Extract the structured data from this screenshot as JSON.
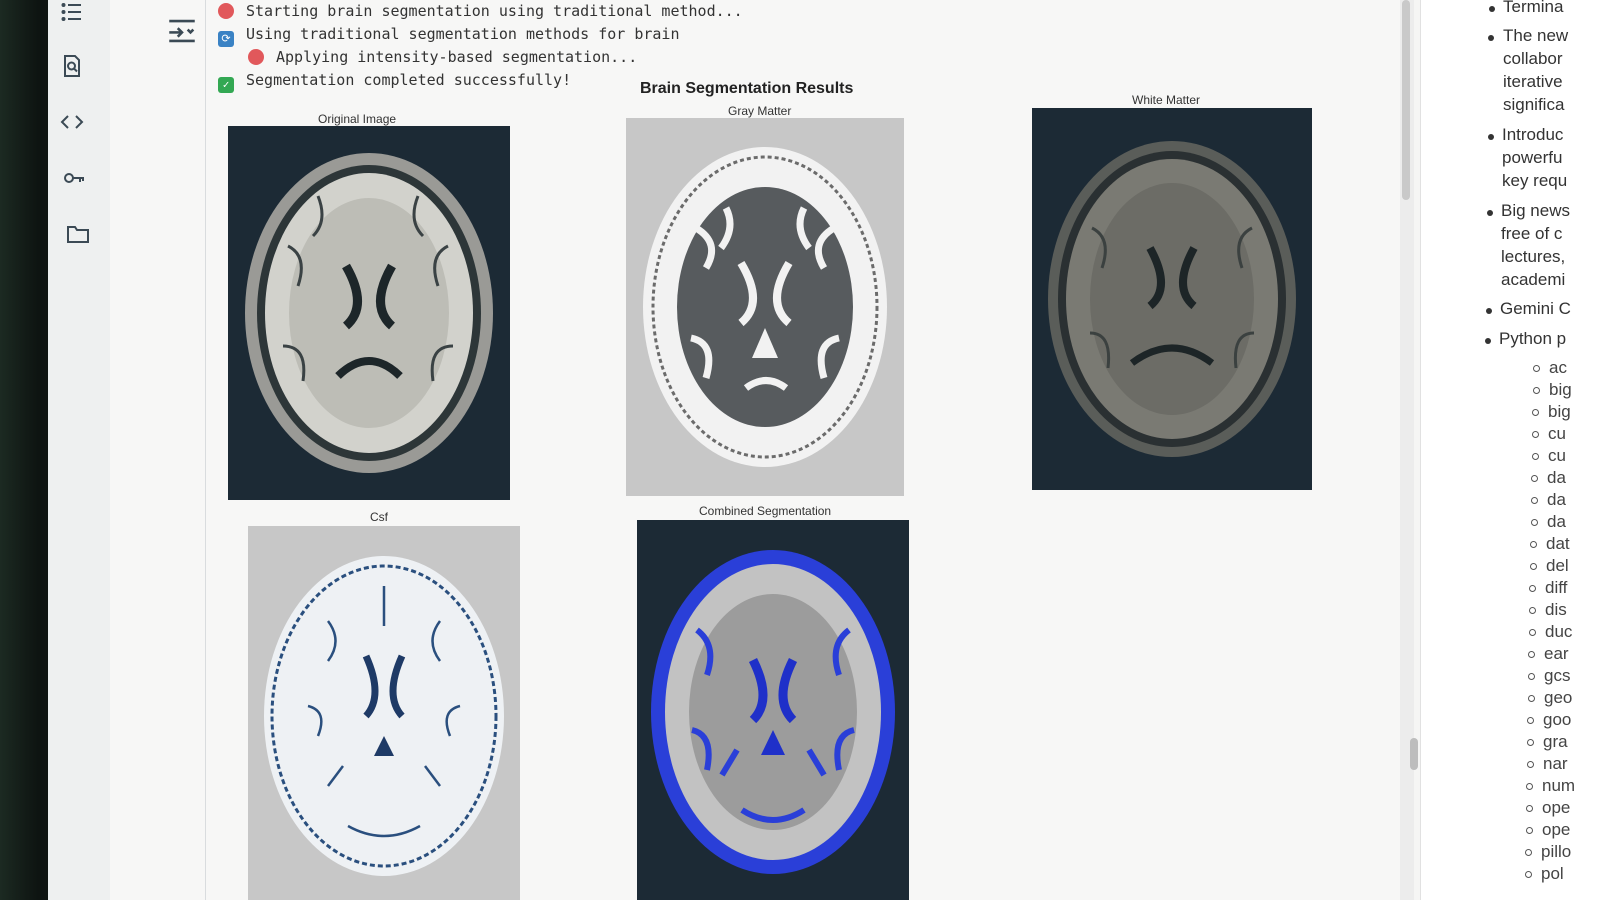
{
  "log": {
    "line1": "Starting brain segmentation using traditional method...",
    "line2": "Using traditional segmentation methods for brain",
    "line3": "Applying intensity-based segmentation...",
    "line4": "Segmentation completed successfully!"
  },
  "figure": {
    "title": "Brain Segmentation Results",
    "panels": {
      "original": "Original Image",
      "gray": "Gray Matter",
      "white": "White Matter",
      "csf": "Csf",
      "combined": "Combined Segmentation"
    }
  },
  "outline": {
    "items": [
      "Termina",
      "The new",
      "collabor",
      "iterative",
      "significa",
      "Introduc",
      "powerfu",
      "key requ",
      "Big news",
      "free of c",
      "lectures,",
      "academi",
      "Gemini C",
      "Python p"
    ],
    "subitems": [
      "ac",
      "big",
      "big",
      "cu",
      "cu",
      "da",
      "da",
      "da",
      "dat",
      "del",
      "diff",
      "dis",
      "duc",
      "ear",
      "gcs",
      "geo",
      "goo",
      "gra",
      "nar",
      "num",
      "ope",
      "ope",
      "pillo",
      "pol"
    ]
  },
  "colors": {
    "accent_blue": "#2a3fd8",
    "figure_dark_bg": "#1c2a35",
    "segmentation_gray": "#c7c7c7"
  },
  "icons": [
    "list-icon",
    "search-doc-icon",
    "code-icon",
    "key-icon",
    "folder-icon",
    "collapse-icon"
  ]
}
